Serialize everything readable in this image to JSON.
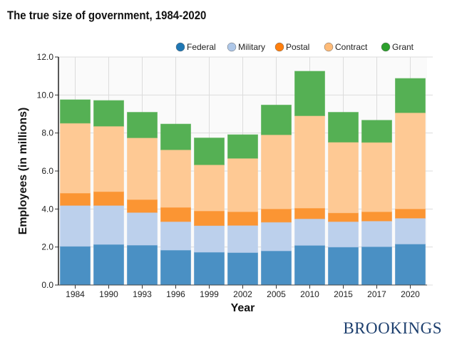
{
  "chart_data": {
    "type": "bar",
    "stacked": true,
    "title": "The true size of government, 1984-2020",
    "xlabel": "Year",
    "ylabel": "Employees (in millions)",
    "ylim": [
      0,
      12
    ],
    "yticks": [
      "0.0",
      "2.0",
      "4.0",
      "6.0",
      "8.0",
      "10.0",
      "12.0"
    ],
    "grid": true,
    "legend_position": "top-right",
    "categories": [
      "1984",
      "1990",
      "1993",
      "1996",
      "1999",
      "2002",
      "2005",
      "2010",
      "2015",
      "2017",
      "2020"
    ],
    "series": [
      {
        "name": "Federal",
        "color": "#4a90c4",
        "values": [
          2.04,
          2.14,
          2.1,
          1.84,
          1.73,
          1.71,
          1.8,
          2.09,
          2.0,
          2.02,
          2.16
        ]
      },
      {
        "name": "Military",
        "color": "#bcd0ec",
        "values": [
          2.15,
          2.05,
          1.72,
          1.5,
          1.4,
          1.43,
          1.51,
          1.4,
          1.34,
          1.35,
          1.36
        ]
      },
      {
        "name": "Postal",
        "color": "#fb9533",
        "values": [
          0.65,
          0.73,
          0.68,
          0.75,
          0.77,
          0.72,
          0.7,
          0.56,
          0.46,
          0.49,
          0.49
        ]
      },
      {
        "name": "Contract",
        "color": "#fec994",
        "values": [
          3.68,
          3.44,
          3.25,
          3.03,
          2.43,
          2.81,
          3.9,
          4.86,
          3.72,
          3.65,
          5.06
        ]
      },
      {
        "name": "Grant",
        "color": "#55b054",
        "values": [
          1.23,
          1.35,
          1.34,
          1.35,
          1.41,
          1.24,
          1.56,
          2.34,
          1.57,
          1.16,
          1.8
        ]
      }
    ]
  },
  "legend_swatch_colors": [
    "#1f77b4",
    "#aec7e8",
    "#ff7f0e",
    "#ffbb78",
    "#2ca02c"
  ],
  "branding": {
    "logo": "BROOKINGS"
  }
}
